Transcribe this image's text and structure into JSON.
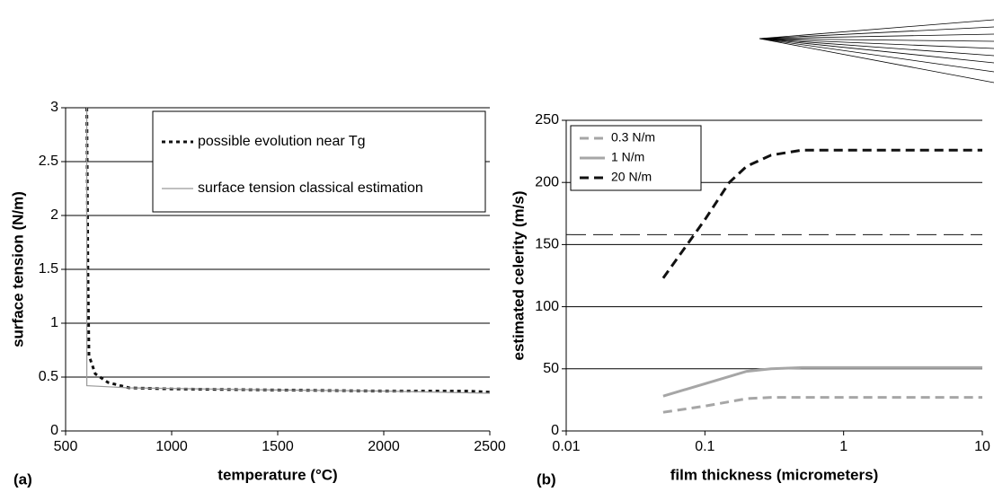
{
  "chart_data": [
    {
      "type": "line",
      "panel_label": "(a)",
      "x_label": "temperature (°C)",
      "y_label": "surface tension (N/m)",
      "xlim": [
        500,
        2500
      ],
      "xticks": [
        500,
        1000,
        1500,
        2000,
        2500
      ],
      "ylim": [
        0,
        3
      ],
      "yticks": [
        0,
        0.5,
        1,
        1.5,
        2,
        2.5,
        3
      ],
      "grid": true,
      "legend": "upper right",
      "series": [
        {
          "name": "possible evolution near Tg",
          "color": "#111111",
          "dash": "dotted",
          "x": [
            600,
            605,
            610,
            640,
            700,
            800,
            1000,
            1500,
            2000,
            2400,
            2500
          ],
          "values": [
            3,
            1.5,
            0.7,
            0.53,
            0.45,
            0.4,
            0.39,
            0.38,
            0.37,
            0.37,
            0.36
          ]
        },
        {
          "name": "surface tension classical estimation",
          "color": "#999999",
          "dash": "solid",
          "x": [
            600,
            600,
            800,
            1500,
            2000,
            2500
          ],
          "values": [
            3,
            0.42,
            0.4,
            0.38,
            0.37,
            0.35
          ]
        }
      ]
    },
    {
      "type": "line",
      "panel_label": "(b)",
      "x_label": "film thickness (micrometers)",
      "y_label": "estimated celerity (m/s)",
      "xscale": "log",
      "xlim": [
        0.01,
        10
      ],
      "xticks": [
        0.01,
        0.1,
        1,
        10
      ],
      "ylim": [
        0,
        250
      ],
      "yticks": [
        0,
        50,
        100,
        150,
        200,
        250
      ],
      "grid": true,
      "legend": "upper left",
      "reference_line": {
        "value": 158,
        "color": "#111111"
      },
      "series": [
        {
          "name": "0.3 N/m",
          "color": "#a6a6a6",
          "dash": "dashed",
          "x": [
            0.05,
            0.1,
            0.2,
            0.3,
            0.5,
            1,
            10
          ],
          "values": [
            15,
            20,
            26,
            27,
            27,
            27,
            27
          ]
        },
        {
          "name": "1 N/m",
          "color": "#a6a6a6",
          "dash": "solid",
          "x": [
            0.05,
            0.1,
            0.2,
            0.3,
            0.5,
            1,
            10
          ],
          "values": [
            28,
            38,
            48,
            50,
            51,
            51,
            51
          ]
        },
        {
          "name": "20 N/m",
          "color": "#111111",
          "dash": "dashed",
          "x": [
            0.05,
            0.1,
            0.15,
            0.2,
            0.3,
            0.5,
            1,
            10
          ],
          "values": [
            123,
            170,
            200,
            213,
            222,
            226,
            226,
            226
          ]
        }
      ]
    }
  ]
}
